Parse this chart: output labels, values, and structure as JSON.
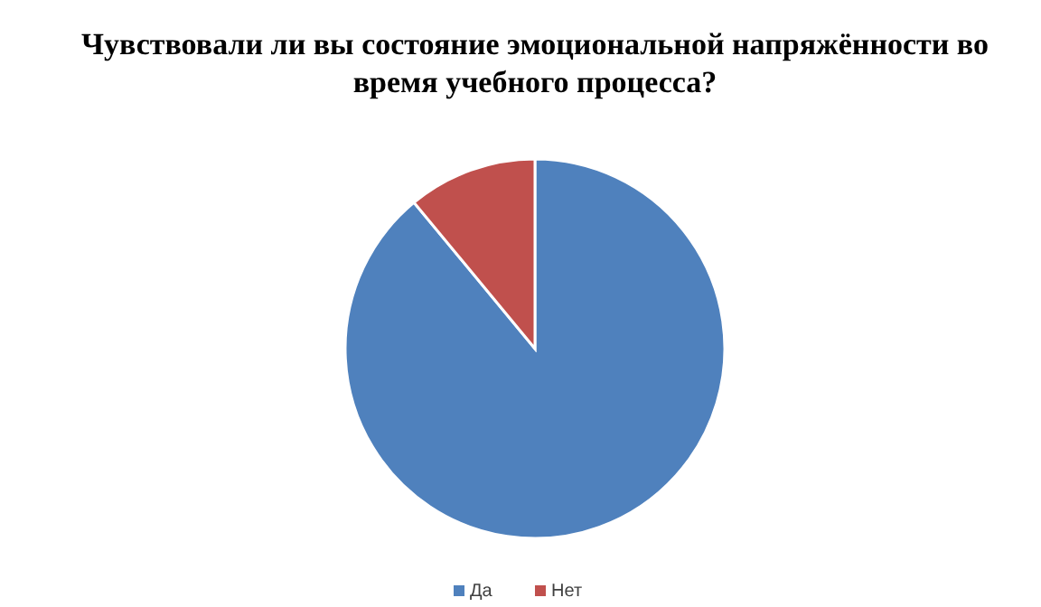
{
  "chart_data": {
    "type": "pie",
    "title": "Чувствовали ли вы состояние эмоциональной напряжённости во время учебного процесса?",
    "categories": [
      "Да",
      "Нет"
    ],
    "values": [
      89,
      11
    ],
    "colors": [
      "#4f81bd",
      "#c0504d"
    ],
    "legend": "bottom"
  }
}
